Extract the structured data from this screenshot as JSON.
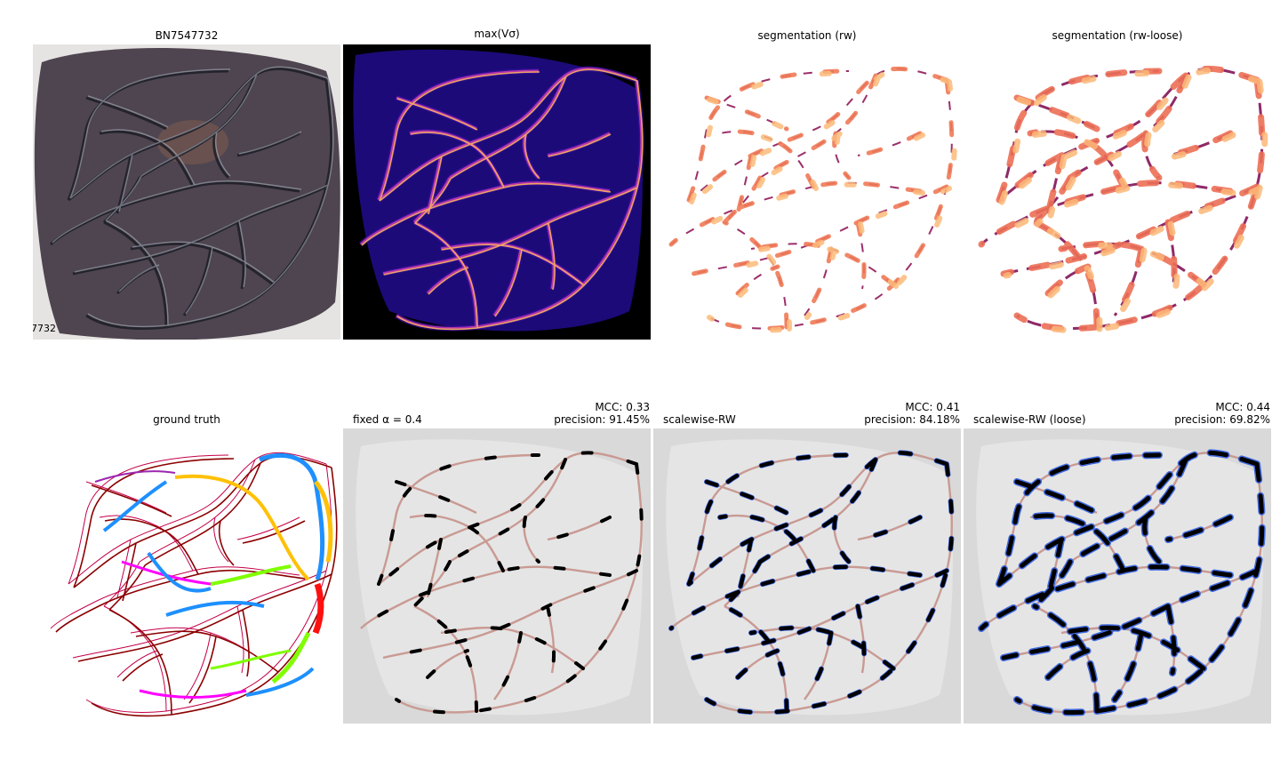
{
  "figure": {
    "row1": {
      "photo_title": "BN7547732",
      "photo_corner_label": "7732",
      "vesselness_title": "max(Vσ)",
      "seg_rw_title": "segmentation (rw)",
      "seg_rw_loose_title": "segmentation (rw-loose)"
    },
    "row2": {
      "gt_title": "ground truth",
      "panels": [
        {
          "label": "fixed α = 0.4",
          "mcc": "MCC: 0.33",
          "precision": "precision: 91.45%"
        },
        {
          "label": "scalewise-RW",
          "mcc": "MCC: 0.41",
          "precision": "precision: 84.18%"
        },
        {
          "label": "scalewise-RW (loose)",
          "mcc": "MCC: 0.44",
          "precision": "precision: 69.82%"
        }
      ]
    }
  }
}
